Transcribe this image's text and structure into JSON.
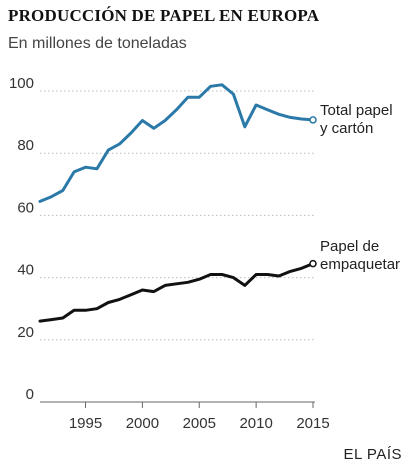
{
  "chart_data": {
    "type": "line",
    "title": "PRODUCCIÓN DE PAPEL EN EUROPA",
    "subtitle": "En millones de toneladas",
    "source": "EL PAÍS",
    "xlim": [
      1991,
      2015
    ],
    "ylim": [
      0,
      100
    ],
    "yticks": [
      0,
      20,
      40,
      60,
      80,
      100
    ],
    "xticks": [
      1995,
      2000,
      2005,
      2010,
      2015
    ],
    "grid": "horizontal",
    "x": [
      1991,
      1992,
      1993,
      1994,
      1995,
      1996,
      1997,
      1998,
      1999,
      2000,
      2001,
      2002,
      2003,
      2004,
      2005,
      2006,
      2007,
      2008,
      2009,
      2010,
      2011,
      2012,
      2013,
      2014,
      2015
    ],
    "series": [
      {
        "name": "Total papel y cartón",
        "label_lines": [
          "Total papel",
          "y cartón"
        ],
        "color": "#2a79a8",
        "values": [
          64.5,
          66,
          68,
          74,
          75.5,
          75,
          81,
          83,
          86.5,
          90.5,
          88,
          90.5,
          94,
          98,
          98,
          101.5,
          102,
          99,
          88.5,
          95.5,
          94,
          92.5,
          91.5,
          91,
          90.7
        ]
      },
      {
        "name": "Papel de empaquetar",
        "label_lines": [
          "Papel de",
          "empaquetar"
        ],
        "color": "#111111",
        "values": [
          26,
          26.5,
          27,
          29.5,
          29.5,
          30,
          32,
          33,
          34.5,
          36,
          35.5,
          37.5,
          38,
          38.5,
          39.5,
          41,
          41,
          40,
          37.5,
          41,
          41,
          40.5,
          42,
          43,
          44.5
        ]
      }
    ]
  }
}
